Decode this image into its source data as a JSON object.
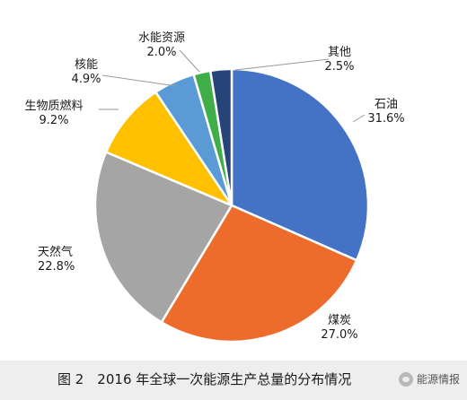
{
  "chart_data": {
    "type": "pie",
    "title": "",
    "slices": [
      {
        "label": "石油",
        "value": 31.6,
        "display": "31.6%",
        "color": "#4472c4"
      },
      {
        "label": "煤炭",
        "value": 27.0,
        "display": "27.0%",
        "color": "#ed6c2c"
      },
      {
        "label": "天然气",
        "value": 22.8,
        "display": "22.8%",
        "color": "#a5a5a5"
      },
      {
        "label": "生物质燃料",
        "value": 9.2,
        "display": "9.2%",
        "color": "#ffc000"
      },
      {
        "label": "核能",
        "value": 4.9,
        "display": "4.9%",
        "color": "#5b9bd5"
      },
      {
        "label": "水能资源",
        "value": 2.0,
        "display": "2.0%",
        "color": "#3fae49"
      },
      {
        "label": "其他",
        "value": 2.5,
        "display": "2.5%",
        "color": "#264478"
      }
    ]
  },
  "caption": {
    "text": "图 2　2016 年全球一次能源生产总量的分布情况",
    "watermark": "能源情报"
  }
}
